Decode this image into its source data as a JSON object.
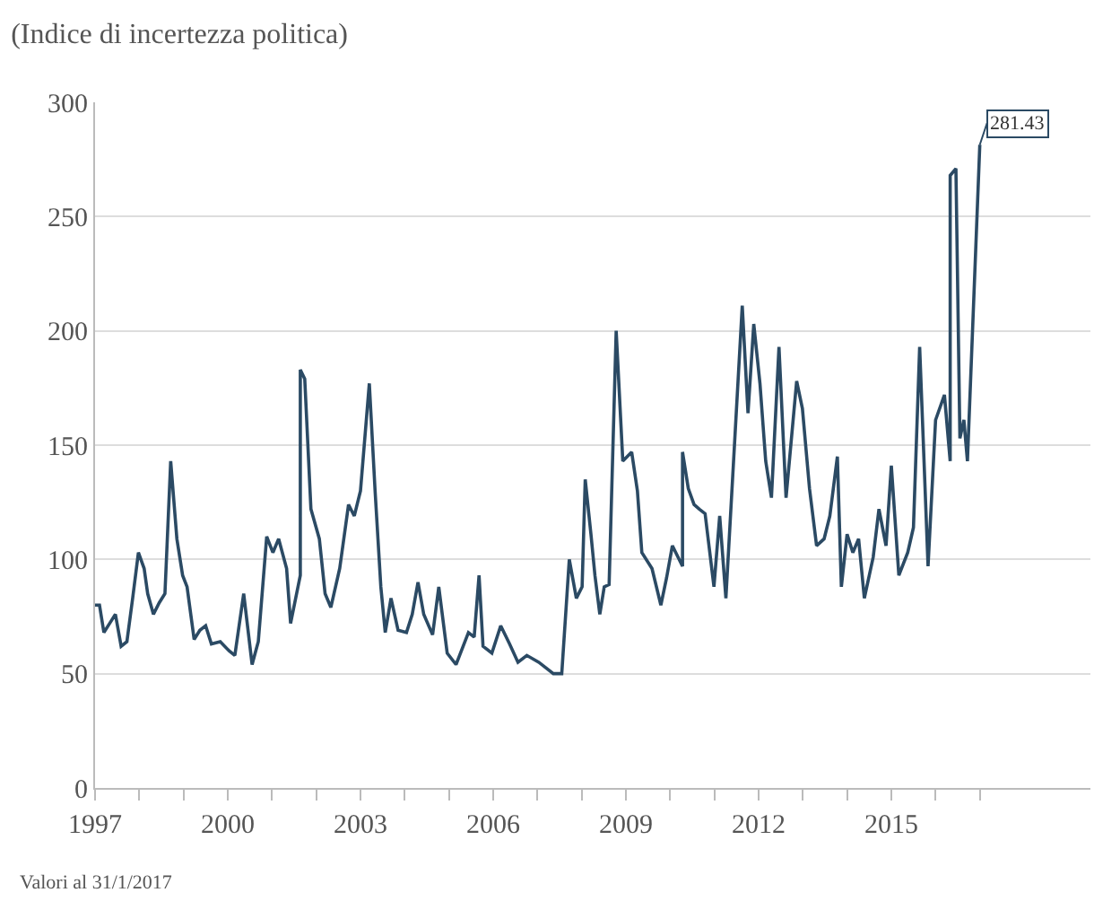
{
  "chart_data": {
    "type": "line",
    "title": "(Indice di incertezza politica)",
    "x": [
      1997.0,
      1997.1,
      1997.2,
      1997.33,
      1997.46,
      1997.59,
      1997.72,
      1997.85,
      1997.98,
      1998.11,
      1998.19,
      1998.32,
      1998.45,
      1998.58,
      1998.71,
      1998.85,
      1998.98,
      1999.08,
      1999.24,
      1999.37,
      1999.5,
      1999.63,
      1999.83,
      2000.03,
      2000.16,
      2000.36,
      2000.55,
      2000.69,
      2000.88,
      2001.02,
      2001.15,
      2001.33,
      2001.42,
      2001.64,
      2001.64,
      2001.74,
      2001.88,
      2002.07,
      2002.2,
      2002.33,
      2002.53,
      2002.73,
      2002.86,
      2003.0,
      2003.2,
      2003.33,
      2003.46,
      2003.56,
      2003.69,
      2003.85,
      2004.04,
      2004.17,
      2004.3,
      2004.43,
      2004.63,
      2004.77,
      2004.96,
      2005.16,
      2005.44,
      2005.57,
      2005.68,
      2005.77,
      2005.97,
      2006.17,
      2006.37,
      2006.56,
      2006.76,
      2007.03,
      2007.36,
      2007.55,
      2007.72,
      2007.88,
      2008.01,
      2008.08,
      2008.21,
      2008.3,
      2008.41,
      2008.51,
      2008.62,
      2008.78,
      2008.93,
      2009.13,
      2009.26,
      2009.36,
      2009.59,
      2009.79,
      2009.92,
      2010.05,
      2010.28,
      2010.28,
      2010.41,
      2010.54,
      2010.66,
      2010.79,
      2010.99,
      2011.12,
      2011.26,
      2011.63,
      2011.76,
      2011.89,
      2012.03,
      2012.16,
      2012.29,
      2012.46,
      2012.62,
      2012.86,
      2012.99,
      2013.15,
      2013.31,
      2013.48,
      2013.61,
      2013.78,
      2013.87,
      2014.0,
      2014.13,
      2014.26,
      2014.39,
      2014.59,
      2014.72,
      2014.88,
      2015.0,
      2015.17,
      2015.37,
      2015.5,
      2015.64,
      2015.83,
      2016.0,
      2016.2,
      2016.33,
      2016.33,
      2016.46,
      2016.55,
      2016.64,
      2016.72,
      2017.0
    ],
    "series": [
      {
        "color": "#2b4a64",
        "values": [
          80,
          80,
          68,
          72,
          76,
          62,
          64,
          83,
          103,
          96,
          85,
          76,
          81,
          85,
          143,
          109,
          93,
          88,
          65,
          69,
          71,
          63,
          64,
          60,
          58,
          85,
          54,
          64,
          110,
          103,
          109,
          96,
          72,
          93,
          183,
          179,
          122,
          109,
          85,
          79,
          96,
          124,
          119,
          130,
          177,
          130,
          88,
          68,
          83,
          69,
          68,
          76,
          90,
          76,
          67,
          88,
          59,
          54,
          68,
          66,
          93,
          62,
          59,
          71,
          63,
          55,
          58,
          55,
          50,
          50,
          100,
          83,
          88,
          135,
          111,
          93,
          76,
          88,
          89,
          200,
          143,
          147,
          130,
          103,
          96,
          80,
          92,
          106,
          97,
          147,
          131,
          124,
          122,
          120,
          88,
          119,
          83,
          211,
          164,
          203,
          177,
          143,
          127,
          193,
          127,
          178,
          166,
          131,
          106,
          109,
          119,
          145,
          88,
          111,
          103,
          109,
          83,
          101,
          122,
          106,
          141,
          93,
          103,
          114,
          193,
          97,
          161,
          172,
          143,
          268,
          271,
          153,
          161,
          143,
          281.43
        ]
      }
    ],
    "xlim": [
      1997,
      2019.5
    ],
    "xticks": [
      1997,
      {
        "value": 1998,
        "label": null
      },
      {
        "value": 1999,
        "label": null
      },
      2000,
      {
        "value": 2001,
        "label": null
      },
      {
        "value": 2002,
        "label": null
      },
      2003,
      {
        "value": 2004,
        "label": null
      },
      {
        "value": 2005,
        "label": null
      },
      2006,
      {
        "value": 2007,
        "label": null
      },
      {
        "value": 2008,
        "label": null
      },
      2009,
      {
        "value": 2010,
        "label": null
      },
      {
        "value": 2011,
        "label": null
      },
      2012,
      {
        "value": 2013,
        "label": null
      },
      {
        "value": 2014,
        "label": null
      },
      2015,
      {
        "value": 2016,
        "label": null
      },
      {
        "value": 2017,
        "label": null
      }
    ],
    "ylim": [
      0,
      300
    ],
    "yticks": [
      0,
      50,
      100,
      150,
      200,
      250,
      300
    ],
    "grid": "y",
    "legend": false,
    "marker": "none",
    "line_style": "solid",
    "annotations": [
      {
        "text": "281.43",
        "x": 2017.0,
        "y": 281.43
      },
      "Valori al 31/1/2017"
    ]
  }
}
